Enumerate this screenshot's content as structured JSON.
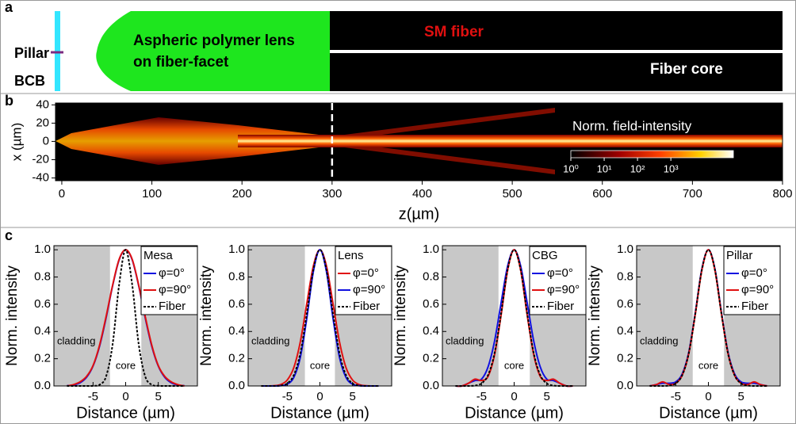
{
  "panel_labels": [
    "a",
    "b",
    "c"
  ],
  "schematic": {
    "pillar": "Pillar",
    "bcb": "BCB",
    "lens": [
      "Aspheric polymer lens",
      "on fiber-facet"
    ],
    "fiber": "SM fiber",
    "core": "Fiber core"
  },
  "chart_data": [
    {
      "type": "heatmap",
      "xlabel": "z(µm)",
      "ylabel": "x (µm)",
      "xlim": [
        -7,
        800
      ],
      "xticks": [
        0,
        100,
        200,
        300,
        400,
        500,
        600,
        700,
        800
      ],
      "ylim": [
        -43,
        42
      ],
      "yticks": [
        40,
        20,
        0,
        -20,
        -40
      ],
      "vline": 300,
      "colorbar_label": "Norm. field-intensity",
      "clim": [
        1,
        75000
      ],
      "log_colorbar": true,
      "colorbar_ticks": [
        {
          "value": 1,
          "label": "10⁰"
        },
        {
          "value": 10,
          "label": "10¹"
        },
        {
          "value": 100,
          "label": "10²"
        },
        {
          "value": 1000,
          "label": "10³"
        }
      ]
    },
    {
      "type": "line",
      "legend_title": "Mesa",
      "xlabel": "Distance (µm)",
      "ylabel": "Norm. intensity",
      "cladding_label": "cladding",
      "core_label": "core",
      "core_range": [
        -2.4,
        2.4
      ],
      "xlim": [
        -11,
        11
      ],
      "xticks": [
        -5,
        0,
        5
      ],
      "ylim": [
        0,
        1.03
      ],
      "yticks": [
        {
          "value": 0,
          "label": "0.0"
        },
        0.2,
        0.4,
        0.6,
        0.8,
        {
          "value": 1,
          "label": "1.0"
        }
      ],
      "x": [
        -9,
        -8,
        -7,
        -6,
        -5,
        -4,
        -3,
        -2,
        -1,
        0,
        1,
        2,
        3,
        4,
        5,
        6,
        7,
        8,
        9
      ],
      "series": [
        {
          "name": "φ=0°",
          "color": "#1010e0",
          "values": [
            0.002,
            0.007,
            0.023,
            0.063,
            0.146,
            0.292,
            0.5,
            0.735,
            0.926,
            1,
            0.926,
            0.735,
            0.5,
            0.292,
            0.146,
            0.063,
            0.023,
            0.007,
            0.002
          ]
        },
        {
          "name": "φ=90°",
          "color": "#e01010",
          "values": [
            0,
            0.01,
            0.03,
            0.07,
            0.15,
            0.3,
            0.51,
            0.74,
            0.93,
            1,
            0.93,
            0.74,
            0.51,
            0.3,
            0.15,
            0.07,
            0.03,
            0.01,
            0
          ]
        },
        {
          "name": "Fiber",
          "color": "#000000",
          "dashed": true,
          "values": [
            0,
            0,
            0,
            0,
            0.001,
            0.009,
            0.07,
            0.306,
            0.744,
            1,
            0.744,
            0.306,
            0.07,
            0.009,
            0.001,
            0,
            0,
            0,
            0
          ]
        }
      ]
    },
    {
      "type": "line",
      "legend_title": "Lens",
      "xlabel": "Distance (µm)",
      "ylabel": "Norm. intensity",
      "cladding_label": "cladding",
      "core_label": "core",
      "core_range": [
        -2.3,
        2.3
      ],
      "xlim": [
        -11,
        11
      ],
      "xticks": [
        -5,
        0,
        5
      ],
      "ylim": [
        0,
        1.03
      ],
      "yticks": [
        {
          "value": 0,
          "label": "0.0"
        },
        0.2,
        0.4,
        0.6,
        0.8,
        {
          "value": 1,
          "label": "1.0"
        }
      ],
      "x": [
        -9,
        -8,
        -7,
        -6,
        -5,
        -4,
        -3,
        -2,
        -1,
        0,
        1,
        2,
        3,
        4,
        5,
        6,
        7,
        8,
        9
      ],
      "series": [
        {
          "name": "φ=0°",
          "color": "#e01010",
          "values": [
            0,
            0,
            0.002,
            0.011,
            0.044,
            0.135,
            0.325,
            0.607,
            0.882,
            1,
            0.882,
            0.607,
            0.325,
            0.135,
            0.044,
            0.011,
            0.002,
            0,
            0
          ]
        },
        {
          "name": "φ=90°",
          "color": "#1010e0",
          "values": [
            0,
            0,
            0,
            0.002,
            0.013,
            0.063,
            0.211,
            0.5,
            0.841,
            1,
            0.841,
            0.5,
            0.211,
            0.063,
            0.013,
            0.002,
            0,
            0,
            0
          ]
        },
        {
          "name": "Fiber",
          "color": "#000000",
          "dashed": true,
          "values": [
            0,
            0,
            0,
            0.003,
            0.019,
            0.08,
            0.241,
            0.532,
            0.854,
            1,
            0.854,
            0.532,
            0.241,
            0.08,
            0.019,
            0.003,
            0,
            0,
            0
          ]
        }
      ]
    },
    {
      "type": "line",
      "legend_title": "CBG",
      "xlabel": "Distance (µm)",
      "ylabel": "Norm. intensity",
      "cladding_label": "cladding",
      "core_label": "core",
      "core_range": [
        -2.4,
        2.4
      ],
      "xlim": [
        -11,
        11
      ],
      "xticks": [
        -5,
        0,
        5
      ],
      "ylim": [
        0,
        1.03
      ],
      "yticks": [
        {
          "value": 0,
          "label": "0.0"
        },
        0.2,
        0.4,
        0.6,
        0.8,
        {
          "value": 1,
          "label": "1.0"
        }
      ],
      "x": [
        -9,
        -8,
        -7,
        -6,
        -5,
        -4,
        -3,
        -2,
        -1,
        0,
        1,
        2,
        3,
        4,
        5,
        6,
        7,
        8,
        9
      ],
      "series": [
        {
          "name": "φ=0°",
          "color": "#1010e0",
          "values": [
            0,
            0,
            0.02,
            0.04,
            0.05,
            0.14,
            0.33,
            0.61,
            0.88,
            1,
            0.88,
            0.61,
            0.33,
            0.14,
            0.05,
            0.04,
            0.02,
            0,
            0
          ]
        },
        {
          "name": "φ=90°",
          "color": "#e01010",
          "values": [
            0,
            0,
            0.02,
            0.05,
            0.04,
            0.07,
            0.23,
            0.52,
            0.85,
            1,
            0.85,
            0.52,
            0.23,
            0.07,
            0.04,
            0.05,
            0.02,
            0,
            0
          ]
        },
        {
          "name": "Fiber",
          "color": "#000000",
          "dashed": true,
          "values": [
            0,
            0,
            0,
            0.003,
            0.019,
            0.08,
            0.241,
            0.532,
            0.854,
            1,
            0.854,
            0.532,
            0.241,
            0.08,
            0.019,
            0.003,
            0,
            0,
            0
          ]
        }
      ]
    },
    {
      "type": "line",
      "legend_title": "Pillar",
      "xlabel": "Distance (µm)",
      "ylabel": "Norm. intensity",
      "cladding_label": "cladding",
      "core_label": "core",
      "core_range": [
        -2.4,
        2.4
      ],
      "xlim": [
        -11,
        11
      ],
      "xticks": [
        -5,
        0,
        5
      ],
      "ylim": [
        0,
        1.03
      ],
      "yticks": [
        {
          "value": 0,
          "label": "0.0"
        },
        0.2,
        0.4,
        0.6,
        0.8,
        {
          "value": 1,
          "label": "1.0"
        }
      ],
      "x": [
        -9,
        -8,
        -7,
        -6,
        -5,
        -4,
        -3,
        -2,
        -1,
        0,
        1,
        2,
        3,
        4,
        5,
        6,
        7,
        8,
        9
      ],
      "series": [
        {
          "name": "φ=0°",
          "color": "#1010e0",
          "values": [
            0,
            0.01,
            0.02,
            0.02,
            0.03,
            0.09,
            0.25,
            0.54,
            0.86,
            1,
            0.86,
            0.54,
            0.25,
            0.09,
            0.03,
            0.02,
            0.02,
            0.01,
            0
          ]
        },
        {
          "name": "φ=90°",
          "color": "#e01010",
          "values": [
            0,
            0.01,
            0.03,
            0.01,
            0.02,
            0.08,
            0.24,
            0.53,
            0.85,
            1,
            0.85,
            0.53,
            0.24,
            0.08,
            0.02,
            0.01,
            0.03,
            0.01,
            0
          ]
        },
        {
          "name": "Fiber",
          "color": "#000000",
          "dashed": true,
          "values": [
            0,
            0,
            0,
            0.003,
            0.019,
            0.08,
            0.241,
            0.532,
            0.854,
            1,
            0.854,
            0.532,
            0.241,
            0.08,
            0.019,
            0.003,
            0,
            0,
            0
          ]
        }
      ]
    }
  ]
}
